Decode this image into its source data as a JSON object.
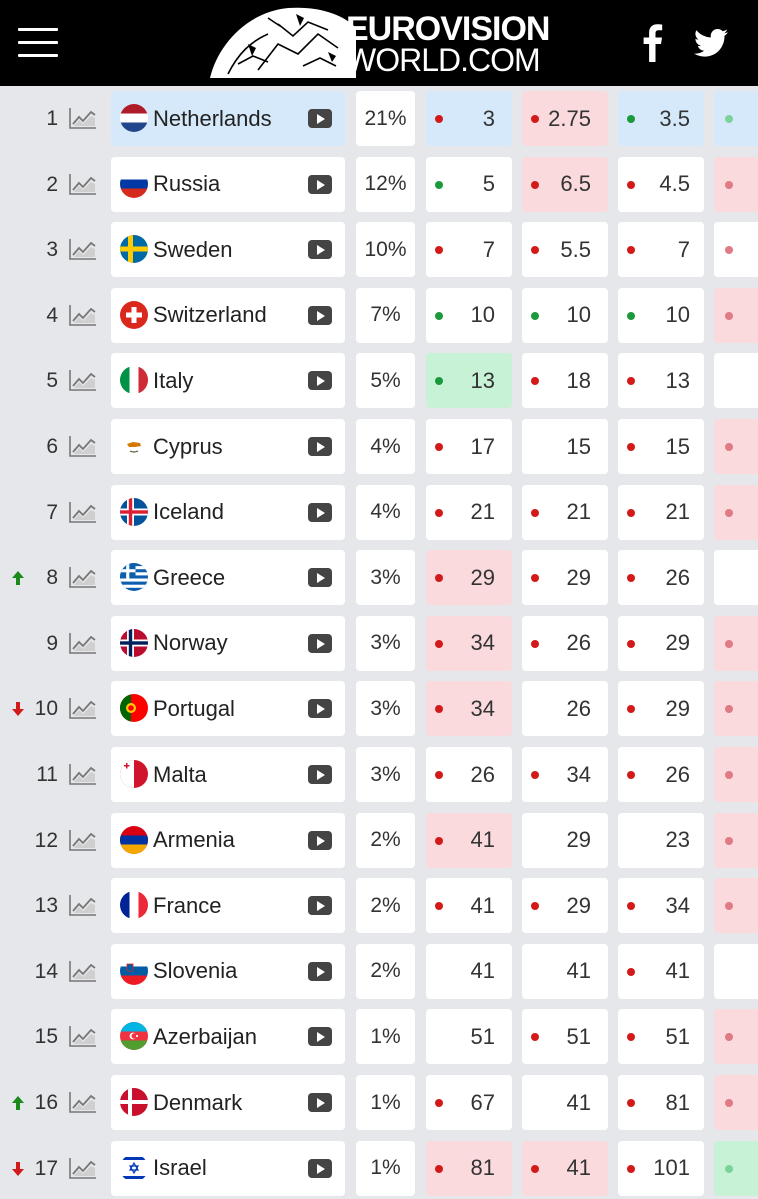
{
  "header": {
    "logo_line1": "EUROVISION",
    "logo_line2": "WORLD.COM",
    "background": "#000000"
  },
  "colors": {
    "highlight_blue": "#d6e9fa",
    "highlight_red": "#fadadd",
    "highlight_green": "#c8f2d6",
    "dot_red": "#d21a1a",
    "dot_green": "#1a9a3a",
    "arrow_up": "#1a8a1a",
    "arrow_down": "#d11a1a"
  },
  "rows": [
    {
      "rank": "1",
      "move": "",
      "country": "Netherlands",
      "flag": "netherlands",
      "hl": true,
      "pct": "21%",
      "odds": [
        {
          "val": "3",
          "dot": "r",
          "bg": "blue"
        },
        {
          "val": "2.75",
          "dot": "r",
          "bg": "red"
        },
        {
          "val": "3.5",
          "dot": "g",
          "bg": "blue"
        }
      ],
      "partial": {
        "dot": "gl",
        "bg": "blue"
      }
    },
    {
      "rank": "2",
      "move": "",
      "country": "Russia",
      "flag": "russia",
      "hl": false,
      "pct": "12%",
      "odds": [
        {
          "val": "5",
          "dot": "g",
          "bg": ""
        },
        {
          "val": "6.5",
          "dot": "r",
          "bg": "red"
        },
        {
          "val": "4.5",
          "dot": "r",
          "bg": ""
        }
      ],
      "partial": {
        "dot": "rl",
        "bg": "red"
      }
    },
    {
      "rank": "3",
      "move": "",
      "country": "Sweden",
      "flag": "sweden",
      "hl": false,
      "pct": "10%",
      "odds": [
        {
          "val": "7",
          "dot": "r",
          "bg": ""
        },
        {
          "val": "5.5",
          "dot": "r",
          "bg": ""
        },
        {
          "val": "7",
          "dot": "r",
          "bg": ""
        }
      ],
      "partial": {
        "dot": "rl",
        "bg": ""
      }
    },
    {
      "rank": "4",
      "move": "",
      "country": "Switzerland",
      "flag": "switzerland",
      "hl": false,
      "pct": "7%",
      "odds": [
        {
          "val": "10",
          "dot": "g",
          "bg": ""
        },
        {
          "val": "10",
          "dot": "g",
          "bg": ""
        },
        {
          "val": "10",
          "dot": "g",
          "bg": ""
        }
      ],
      "partial": {
        "dot": "rl",
        "bg": "red"
      }
    },
    {
      "rank": "5",
      "move": "",
      "country": "Italy",
      "flag": "italy",
      "hl": false,
      "pct": "5%",
      "odds": [
        {
          "val": "13",
          "dot": "g",
          "bg": "green"
        },
        {
          "val": "18",
          "dot": "r",
          "bg": ""
        },
        {
          "val": "13",
          "dot": "r",
          "bg": ""
        }
      ],
      "partial": {
        "dot": "",
        "bg": ""
      }
    },
    {
      "rank": "6",
      "move": "",
      "country": "Cyprus",
      "flag": "cyprus",
      "hl": false,
      "pct": "4%",
      "odds": [
        {
          "val": "17",
          "dot": "r",
          "bg": ""
        },
        {
          "val": "15",
          "dot": "",
          "bg": ""
        },
        {
          "val": "15",
          "dot": "r",
          "bg": ""
        }
      ],
      "partial": {
        "dot": "rl",
        "bg": "red"
      }
    },
    {
      "rank": "7",
      "move": "",
      "country": "Iceland",
      "flag": "iceland",
      "hl": false,
      "pct": "4%",
      "odds": [
        {
          "val": "21",
          "dot": "r",
          "bg": ""
        },
        {
          "val": "21",
          "dot": "r",
          "bg": ""
        },
        {
          "val": "21",
          "dot": "r",
          "bg": ""
        }
      ],
      "partial": {
        "dot": "rl",
        "bg": "red"
      }
    },
    {
      "rank": "8",
      "move": "up",
      "country": "Greece",
      "flag": "greece",
      "hl": false,
      "pct": "3%",
      "odds": [
        {
          "val": "29",
          "dot": "r",
          "bg": "red"
        },
        {
          "val": "29",
          "dot": "r",
          "bg": ""
        },
        {
          "val": "26",
          "dot": "r",
          "bg": ""
        }
      ],
      "partial": {
        "dot": "",
        "bg": ""
      }
    },
    {
      "rank": "9",
      "move": "",
      "country": "Norway",
      "flag": "norway",
      "hl": false,
      "pct": "3%",
      "odds": [
        {
          "val": "34",
          "dot": "r",
          "bg": "red"
        },
        {
          "val": "26",
          "dot": "r",
          "bg": ""
        },
        {
          "val": "29",
          "dot": "r",
          "bg": ""
        }
      ],
      "partial": {
        "dot": "rl",
        "bg": "red"
      }
    },
    {
      "rank": "10",
      "move": "down",
      "country": "Portugal",
      "flag": "portugal",
      "hl": false,
      "pct": "3%",
      "odds": [
        {
          "val": "34",
          "dot": "r",
          "bg": "red"
        },
        {
          "val": "26",
          "dot": "",
          "bg": ""
        },
        {
          "val": "29",
          "dot": "r",
          "bg": ""
        }
      ],
      "partial": {
        "dot": "rl",
        "bg": "red"
      }
    },
    {
      "rank": "11",
      "move": "",
      "country": "Malta",
      "flag": "malta",
      "hl": false,
      "pct": "3%",
      "odds": [
        {
          "val": "26",
          "dot": "r",
          "bg": ""
        },
        {
          "val": "34",
          "dot": "r",
          "bg": ""
        },
        {
          "val": "26",
          "dot": "r",
          "bg": ""
        }
      ],
      "partial": {
        "dot": "rl",
        "bg": "red"
      }
    },
    {
      "rank": "12",
      "move": "",
      "country": "Armenia",
      "flag": "armenia",
      "hl": false,
      "pct": "2%",
      "odds": [
        {
          "val": "41",
          "dot": "r",
          "bg": "red"
        },
        {
          "val": "29",
          "dot": "",
          "bg": ""
        },
        {
          "val": "23",
          "dot": "",
          "bg": ""
        }
      ],
      "partial": {
        "dot": "rl",
        "bg": "red"
      }
    },
    {
      "rank": "13",
      "move": "",
      "country": "France",
      "flag": "france",
      "hl": false,
      "pct": "2%",
      "odds": [
        {
          "val": "41",
          "dot": "r",
          "bg": ""
        },
        {
          "val": "29",
          "dot": "r",
          "bg": ""
        },
        {
          "val": "34",
          "dot": "r",
          "bg": ""
        }
      ],
      "partial": {
        "dot": "rl",
        "bg": "red"
      }
    },
    {
      "rank": "14",
      "move": "",
      "country": "Slovenia",
      "flag": "slovenia",
      "hl": false,
      "pct": "2%",
      "odds": [
        {
          "val": "41",
          "dot": "",
          "bg": ""
        },
        {
          "val": "41",
          "dot": "",
          "bg": ""
        },
        {
          "val": "41",
          "dot": "r",
          "bg": ""
        }
      ],
      "partial": {
        "dot": "",
        "bg": ""
      }
    },
    {
      "rank": "15",
      "move": "",
      "country": "Azerbaijan",
      "flag": "azerbaijan",
      "hl": false,
      "pct": "1%",
      "odds": [
        {
          "val": "51",
          "dot": "",
          "bg": ""
        },
        {
          "val": "51",
          "dot": "r",
          "bg": ""
        },
        {
          "val": "51",
          "dot": "r",
          "bg": ""
        }
      ],
      "partial": {
        "dot": "rl",
        "bg": "red"
      }
    },
    {
      "rank": "16",
      "move": "up",
      "country": "Denmark",
      "flag": "denmark",
      "hl": false,
      "pct": "1%",
      "odds": [
        {
          "val": "67",
          "dot": "r",
          "bg": ""
        },
        {
          "val": "41",
          "dot": "",
          "bg": ""
        },
        {
          "val": "81",
          "dot": "r",
          "bg": ""
        }
      ],
      "partial": {
        "dot": "rl",
        "bg": "red"
      }
    },
    {
      "rank": "17",
      "move": "down",
      "country": "Israel",
      "flag": "israel",
      "hl": false,
      "pct": "1%",
      "odds": [
        {
          "val": "81",
          "dot": "r",
          "bg": "red"
        },
        {
          "val": "41",
          "dot": "r",
          "bg": "red"
        },
        {
          "val": "101",
          "dot": "r",
          "bg": ""
        }
      ],
      "partial": {
        "dot": "gl",
        "bg": "green"
      }
    }
  ]
}
